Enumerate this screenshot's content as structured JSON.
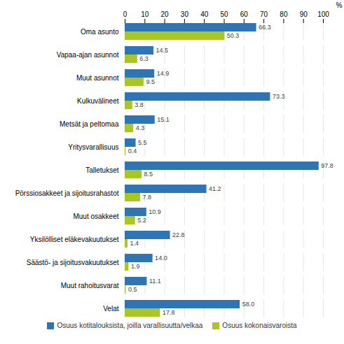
{
  "chart_data": {
    "type": "bar",
    "orientation": "horizontal",
    "categories": [
      "Oma asunto",
      "Vapaa-ajan asunnot",
      "Muut asunnot",
      "Kulkuvälineet",
      "Metsät ja peltomaa",
      "Yritysvarallisuus",
      "Talletukset",
      "Pörssiosakkeet ja sijoitusrahastot",
      "Muut osakkeet",
      "Yksilölliset eläkevakuutukset",
      "Säästö- ja sijoitusvakuutukset",
      "Muut rahoitusvarat",
      "Velat"
    ],
    "series": [
      {
        "name": "Osuus kotitalouksista, joilla varallisuutta/velkaa",
        "color": "#2E75B6",
        "values": [
          66.3,
          14.5,
          14.9,
          73.3,
          15.1,
          5.5,
          97.8,
          41.2,
          10.9,
          22.8,
          14.0,
          11.1,
          58.0
        ],
        "value_labels": [
          "66.3",
          "14.5",
          "14.9",
          "73.3",
          "15.1",
          "5.5",
          "97.8",
          "41.2",
          "10.9",
          "22.8",
          "14.0",
          "11.1",
          "58.0"
        ]
      },
      {
        "name": "Osuus kokonaisvaroista",
        "color": "#A9C623",
        "values": [
          50.3,
          6.3,
          9.5,
          3.8,
          4.3,
          0.4,
          8.5,
          7.8,
          5.2,
          1.4,
          1.9,
          0.5,
          17.8
        ],
        "value_labels": [
          "50.3",
          "6.3",
          "9.5",
          "3.8",
          "4.3",
          "0.4",
          "8.5",
          "7.8",
          "5.2",
          "1.4",
          "1.9",
          "0.5",
          "17.8"
        ]
      }
    ],
    "xlabel": "%",
    "xlim": [
      0,
      100
    ],
    "xticks": [
      0,
      10,
      20,
      30,
      40,
      50,
      60,
      70,
      80,
      90,
      100
    ],
    "grid": true,
    "data_labels": true,
    "legend": "bottom"
  }
}
